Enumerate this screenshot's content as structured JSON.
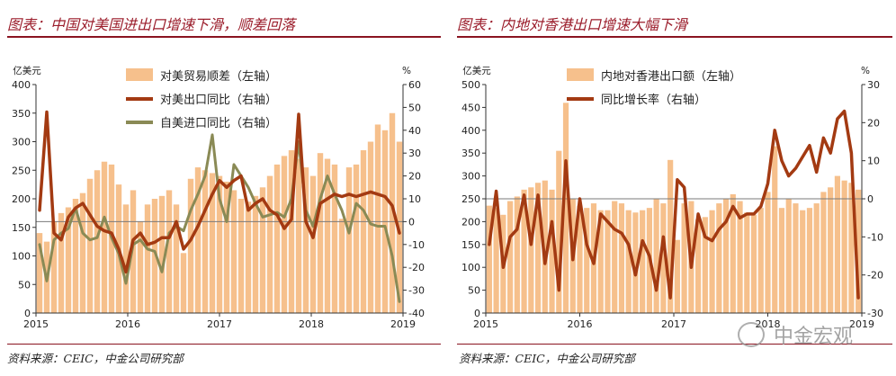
{
  "left": {
    "title": "图表：中国对美国进出口增速下滑，顺差回落",
    "source": "资料来源：CEIC，中金公司研究部",
    "chart_data": {
      "type": "bar+line",
      "left_axis_unit": "亿美元",
      "right_axis_unit": "%",
      "left_ylim": [
        0,
        400
      ],
      "right_ylim": [
        -40,
        60
      ],
      "left_ticks": [
        "0",
        "50",
        "100",
        "150",
        "200",
        "250",
        "300",
        "350",
        "400"
      ],
      "right_ticks": [
        "-40",
        "-30",
        "-20",
        "-10",
        "0",
        "10",
        "20",
        "30",
        "40",
        "50",
        "60"
      ],
      "x_ticks": [
        "2015",
        "2016",
        "2017",
        "2018",
        "2019"
      ],
      "legend": [
        "对美贸易顺差（左轴）",
        "对美出口同比（右轴）",
        "自美进口同比（右轴）"
      ],
      "colors": {
        "bar": "#f6c08c",
        "export": "#a33a12",
        "import": "#8a8a55"
      },
      "bar_values": [
        140,
        125,
        160,
        175,
        185,
        200,
        210,
        235,
        250,
        265,
        260,
        225,
        190,
        215,
        160,
        190,
        200,
        205,
        215,
        190,
        105,
        235,
        255,
        250,
        245,
        240,
        230,
        215,
        200,
        195,
        205,
        220,
        240,
        260,
        275,
        285,
        270,
        255,
        240,
        280,
        270,
        260,
        165,
        255,
        260,
        285,
        300,
        330,
        320,
        350,
        300
      ],
      "export_yoy": [
        5,
        48,
        -5,
        -8,
        2,
        6,
        8,
        3,
        -2,
        -4,
        -5,
        -12,
        -22,
        -8,
        -5,
        -10,
        -9,
        -7,
        -7,
        0,
        -12,
        -8,
        -2,
        5,
        12,
        18,
        15,
        18,
        20,
        5,
        8,
        10,
        5,
        3,
        -3,
        1,
        47,
        0,
        -7,
        8,
        10,
        12,
        11,
        12,
        11,
        12,
        13,
        12,
        11,
        7,
        -5
      ],
      "import_yoy": [
        -10,
        -26,
        -8,
        -5,
        -3,
        6,
        -5,
        -8,
        -7,
        2,
        -7,
        -14,
        -27,
        -10,
        -8,
        -12,
        -13,
        -22,
        -5,
        -2,
        -4,
        5,
        12,
        20,
        38,
        10,
        0,
        25,
        20,
        15,
        8,
        2,
        3,
        4,
        2,
        10,
        35,
        5,
        -2,
        10,
        20,
        12,
        5,
        -5,
        8,
        5,
        -1,
        -2,
        -2,
        -15,
        -35
      ]
    }
  },
  "right": {
    "title": "图表：内地对香港出口增速大幅下滑",
    "source": "资料来源：CEIC，中金公司研究部",
    "chart_data": {
      "type": "bar+line",
      "left_axis_unit": "亿美元",
      "right_axis_unit": "%",
      "left_ylim": [
        0,
        500
      ],
      "right_ylim": [
        -30,
        30
      ],
      "left_ticks": [
        "0",
        "50",
        "100",
        "150",
        "200",
        "250",
        "300",
        "350",
        "400",
        "450",
        "500"
      ],
      "right_ticks": [
        "-30",
        "-20",
        "-10",
        "0",
        "10",
        "20",
        "30"
      ],
      "x_ticks": [
        "2015",
        "2016",
        "2017",
        "2018",
        "2019"
      ],
      "legend": [
        "内地对香港出口额（左轴）",
        "同比增长率（右轴）"
      ],
      "colors": {
        "bar": "#f6c08c",
        "line": "#a33a12"
      },
      "bar_values": [
        235,
        230,
        215,
        245,
        255,
        270,
        275,
        285,
        290,
        270,
        355,
        460,
        250,
        235,
        230,
        240,
        225,
        225,
        245,
        240,
        225,
        220,
        225,
        230,
        250,
        240,
        335,
        160,
        240,
        245,
        205,
        210,
        225,
        240,
        250,
        260,
        245,
        220,
        215,
        230,
        265,
        365,
        230,
        250,
        240,
        225,
        230,
        240,
        265,
        275,
        300,
        290,
        285,
        270
      ],
      "line_values": [
        -12,
        2,
        -18,
        -10,
        -8,
        1,
        -12,
        1,
        -17,
        -6,
        -24,
        10,
        -16,
        0,
        -12,
        -17,
        -4,
        -6,
        -8,
        -9,
        -12,
        -20,
        -11,
        -15,
        -24,
        -10,
        -26,
        5,
        3,
        -18,
        -4,
        -10,
        -11,
        -8,
        -6,
        -2,
        -5,
        -4,
        -4,
        -2,
        4,
        18,
        10,
        6,
        8,
        11,
        14,
        7,
        16,
        12,
        21,
        23,
        12,
        -26
      ]
    }
  },
  "watermark": "中金宏观"
}
